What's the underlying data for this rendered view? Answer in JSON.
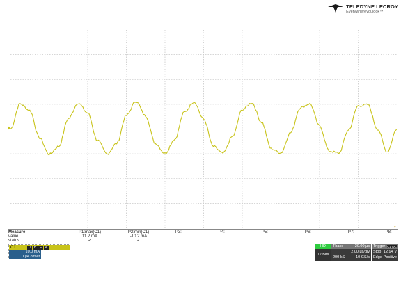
{
  "brand": {
    "name": "TELEDYNE LECROY",
    "tagline": "Everywhereyoulook™"
  },
  "channel_marker": "channel-1-offset-marker",
  "measure": {
    "header_label": "Measure",
    "row_labels": [
      "value",
      "status"
    ],
    "params": [
      {
        "name": "P1:max(C1)",
        "value": "11.2 mA",
        "status": "✓"
      },
      {
        "name": "P2:min(C1)",
        "value": "-10.2 mA",
        "status": "✓"
      },
      {
        "name": "P3:- - -",
        "value": "",
        "status": ""
      },
      {
        "name": "P4:- - -",
        "value": "",
        "status": ""
      },
      {
        "name": "P5:- - -",
        "value": "",
        "status": ""
      },
      {
        "name": "P6:- - -",
        "value": "",
        "status": ""
      },
      {
        "name": "P7:- - -",
        "value": "",
        "status": ""
      },
      {
        "name": "P8:- - -",
        "value": "",
        "status": ""
      }
    ]
  },
  "channel": {
    "name": "C1",
    "flags": [
      "D",
      "B",
      "F",
      "A"
    ],
    "scale": "10.0 mA",
    "offset": "0 μA offset",
    "color": "#c8c31a"
  },
  "acquisition": {
    "hd": "HD",
    "bits": "12 Bits",
    "timebase_label": "Tbase",
    "timebase_delay": "20.00 μs",
    "time_div": "2.00 μs/div",
    "samples": "200 kS",
    "sample_rate": "10 GS/s"
  },
  "trigger": {
    "label": "Trigger",
    "badge": "C1 DC",
    "mode": "Stop",
    "level": "12.94 V",
    "type": "Edge",
    "slope": "Positive"
  },
  "chart_data": {
    "type": "line",
    "title": "",
    "xlabel": "",
    "ylabel": "",
    "grid": true,
    "grid_divisions": {
      "x": 10,
      "y": 8
    },
    "series": [
      {
        "trace_color": "#c8c31a",
        "description": "sinusoidal current, ~7 cycles across screen",
        "x": [
          0,
          0.25,
          0.5,
          0.75,
          1,
          1.25,
          1.5,
          1.75,
          2,
          2.25,
          2.5,
          2.75,
          3,
          3.25,
          3.5,
          3.75,
          4,
          4.25,
          4.5,
          4.75,
          5,
          5.25,
          5.5,
          5.75,
          6,
          6.25,
          6.5,
          6.75,
          7,
          7.25,
          7.5,
          7.75,
          8,
          8.25,
          8.5,
          8.75,
          9,
          9.25,
          9.5,
          9.75,
          10
        ],
        "y": [
          0,
          10.2,
          7.5,
          -3.5,
          -10.2,
          -7.0,
          4.2,
          10.5,
          6.5,
          -4.5,
          -10.0,
          -5.8,
          5.5,
          11.2,
          5.3,
          -5.8,
          -9.8,
          -4.2,
          6.8,
          11.0,
          4.0,
          -7.0,
          -9.8,
          -3.0,
          7.8,
          10.6,
          2.8,
          -8.0,
          -9.6,
          -1.5,
          8.6,
          10.2,
          1.2,
          -8.9,
          -9.7,
          -0.4,
          9.4,
          9.8,
          0,
          -9.2,
          0
        ]
      }
    ],
    "xlim": [
      0,
      10
    ],
    "ylim": [
      -40,
      40
    ],
    "units": {
      "y": "mA"
    }
  }
}
